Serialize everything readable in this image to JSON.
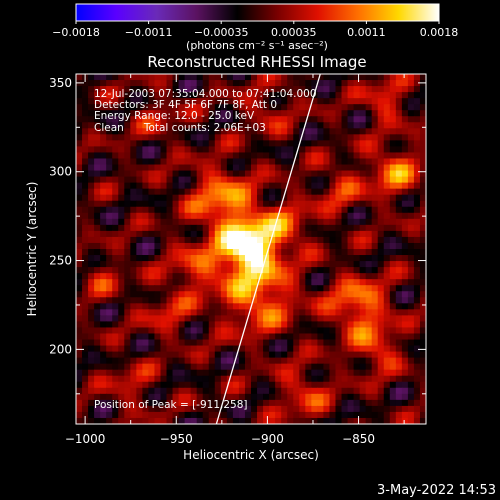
{
  "chart_data": {
    "type": "heatmap",
    "title": "Reconstructed RHESSI Image",
    "xlabel": "Heliocentric X (arcsec)",
    "ylabel": "Heliocentric Y (arcsec)",
    "xlim": [
      -1005,
      -813
    ],
    "ylim": [
      158,
      355
    ],
    "x_ticks": [
      "−1000",
      "−950",
      "−900",
      "−850"
    ],
    "x_tick_values": [
      -1000,
      -950,
      -900,
      -850
    ],
    "y_ticks": [
      "200",
      "250",
      "300",
      "350"
    ],
    "y_tick_values": [
      200,
      250,
      300,
      350
    ],
    "colorbar": {
      "range": [
        -0.0018,
        0.0018
      ],
      "ticks": [
        "−0.0018",
        "−0.0011",
        "−0.00035",
        "0.00035",
        "0.0011",
        "0.0018"
      ],
      "units": "(photons cm⁻² s⁻¹ asec⁻²)",
      "colormap": [
        "#0000ff",
        "#5a00ff",
        "#6a2ab8",
        "#5a1260",
        "#000000",
        "#7a0000",
        "#e01000",
        "#ff7000",
        "#ffd800",
        "#ffffff"
      ]
    },
    "annotations": [
      "12-Jul-2003 07:35:04.000 to 07:41:04.000",
      "Detectors: 3F 4F 5F 6F 7F 8F, Att 0",
      "Energy Range: 12.0 - 25.0 keV",
      "Clean      Total counts: 2.06E+03"
    ],
    "peak_label": "Position of Peak = [-911,258]",
    "peak_position": [
      -911,
      258
    ],
    "limb_line": {
      "color": "#ffffff"
    },
    "date_stamp": "3-May-2022 14:53"
  }
}
